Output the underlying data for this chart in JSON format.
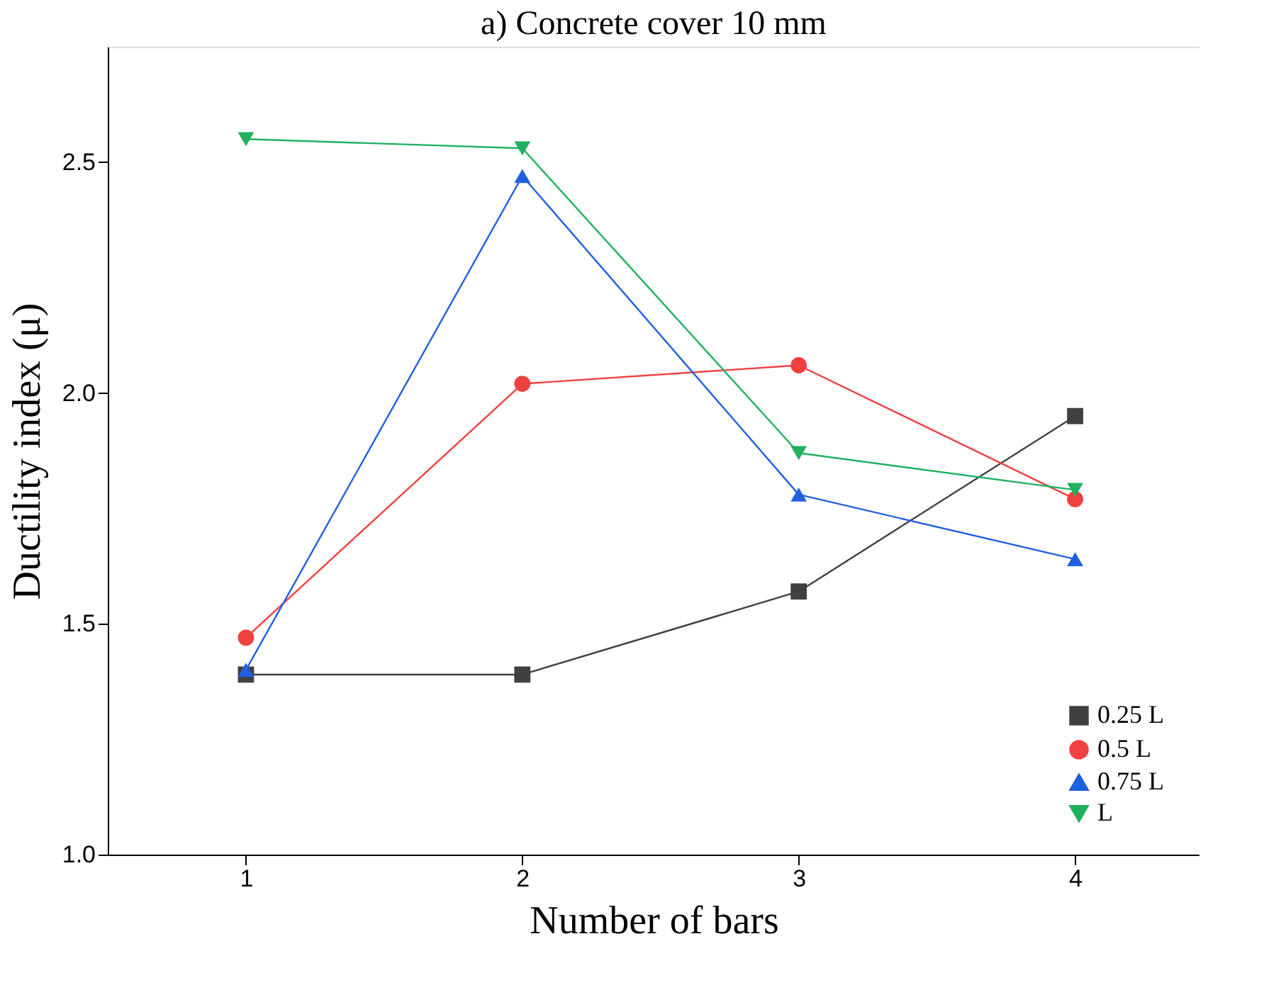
{
  "chart_data": {
    "type": "line",
    "title": "a) Concrete cover 10 mm",
    "xlabel": "Number of bars",
    "ylabel": "Ductility index (μ)",
    "x": [
      1,
      2,
      3,
      4
    ],
    "series": [
      {
        "name": "0.25 L",
        "color": "#404040",
        "marker": "square",
        "values": [
          1.39,
          1.39,
          1.57,
          1.95
        ]
      },
      {
        "name": "0.5  L",
        "color": "#f04040",
        "marker": "circle",
        "values": [
          1.47,
          2.02,
          2.06,
          1.77
        ]
      },
      {
        "name": "0.75  L",
        "color": "#2060e0",
        "marker": "triangle",
        "values": [
          1.4,
          2.47,
          1.78,
          1.64
        ]
      },
      {
        "name": "L",
        "color": "#20b060",
        "marker": "triangle-down",
        "values": [
          2.55,
          2.53,
          1.87,
          1.79
        ]
      }
    ],
    "xlim": [
      0.5,
      4.45
    ],
    "ylim": [
      1.0,
      2.75
    ],
    "xticks": [
      1,
      2,
      3,
      4
    ],
    "yticks": [
      {
        "value": 1.0,
        "label": "1.0"
      },
      {
        "value": 1.5,
        "label": "1.5"
      },
      {
        "value": 2.0,
        "label": "2.0"
      },
      {
        "value": 2.5,
        "label": "2.5"
      }
    ],
    "legend": "right",
    "grid": false,
    "line_style": "solid"
  }
}
